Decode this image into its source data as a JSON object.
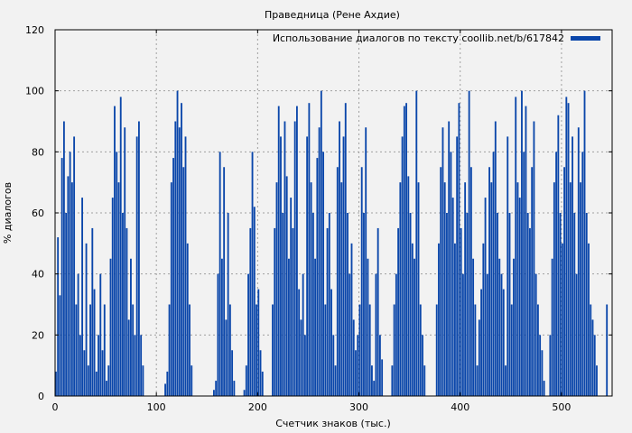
{
  "chart_data": {
    "type": "bar",
    "title": "Праведница (Рене Ахдие)",
    "xlabel": "Счетчик знаков (тыс.)",
    "ylabel": "% диалогов",
    "xlim": [
      0,
      550
    ],
    "ylim": [
      0,
      120
    ],
    "x_ticks": [
      0,
      100,
      200,
      300,
      400,
      500
    ],
    "y_ticks": [
      0,
      20,
      40,
      60,
      80,
      100,
      120
    ],
    "grid": true,
    "legend_position": "top-right",
    "series_color": "#0a46aa",
    "series": [
      {
        "name": "Использование диалогов по тексту coollib.net/b/617842",
        "x_step": 2,
        "values": [
          8,
          52,
          33,
          78,
          90,
          60,
          72,
          80,
          70,
          85,
          30,
          40,
          20,
          65,
          15,
          50,
          10,
          30,
          55,
          35,
          8,
          20,
          40,
          15,
          30,
          5,
          10,
          45,
          65,
          95,
          80,
          70,
          98,
          60,
          88,
          55,
          25,
          45,
          30,
          20,
          85,
          90,
          20,
          10,
          0,
          0,
          0,
          0,
          0,
          0,
          0,
          0,
          0,
          0,
          4,
          8,
          30,
          70,
          78,
          90,
          100,
          88,
          96,
          75,
          85,
          50,
          30,
          10,
          0,
          0,
          0,
          0,
          0,
          0,
          0,
          0,
          0,
          0,
          2,
          5,
          40,
          80,
          45,
          75,
          25,
          60,
          30,
          15,
          5,
          0,
          0,
          0,
          0,
          2,
          10,
          40,
          55,
          80,
          62,
          30,
          35,
          15,
          8,
          0,
          0,
          0,
          0,
          30,
          55,
          70,
          95,
          85,
          60,
          90,
          72,
          45,
          65,
          55,
          90,
          95,
          35,
          25,
          40,
          20,
          85,
          96,
          70,
          60,
          45,
          78,
          88,
          100,
          80,
          30,
          55,
          60,
          35,
          20,
          10,
          75,
          90,
          70,
          85,
          96,
          60,
          40,
          50,
          25,
          15,
          20,
          30,
          75,
          60,
          88,
          45,
          30,
          10,
          5,
          40,
          55,
          20,
          12,
          0,
          0,
          0,
          0,
          10,
          30,
          40,
          55,
          70,
          85,
          95,
          96,
          72,
          60,
          50,
          45,
          100,
          70,
          30,
          20,
          10,
          0,
          0,
          0,
          0,
          0,
          30,
          50,
          75,
          88,
          70,
          60,
          90,
          80,
          65,
          50,
          85,
          96,
          55,
          40,
          70,
          60,
          100,
          75,
          45,
          30,
          10,
          25,
          35,
          50,
          65,
          40,
          75,
          70,
          80,
          90,
          60,
          45,
          40,
          35,
          10,
          85,
          60,
          30,
          45,
          98,
          70,
          65,
          100,
          80,
          95,
          60,
          55,
          75,
          90,
          40,
          30,
          20,
          15,
          5,
          0,
          0,
          20,
          45,
          70,
          80,
          92,
          60,
          50,
          75,
          98,
          96,
          70,
          85,
          60,
          40,
          88,
          70,
          80,
          100,
          60,
          50,
          30,
          25,
          20,
          10,
          0,
          0,
          0,
          0,
          30
        ]
      }
    ]
  }
}
